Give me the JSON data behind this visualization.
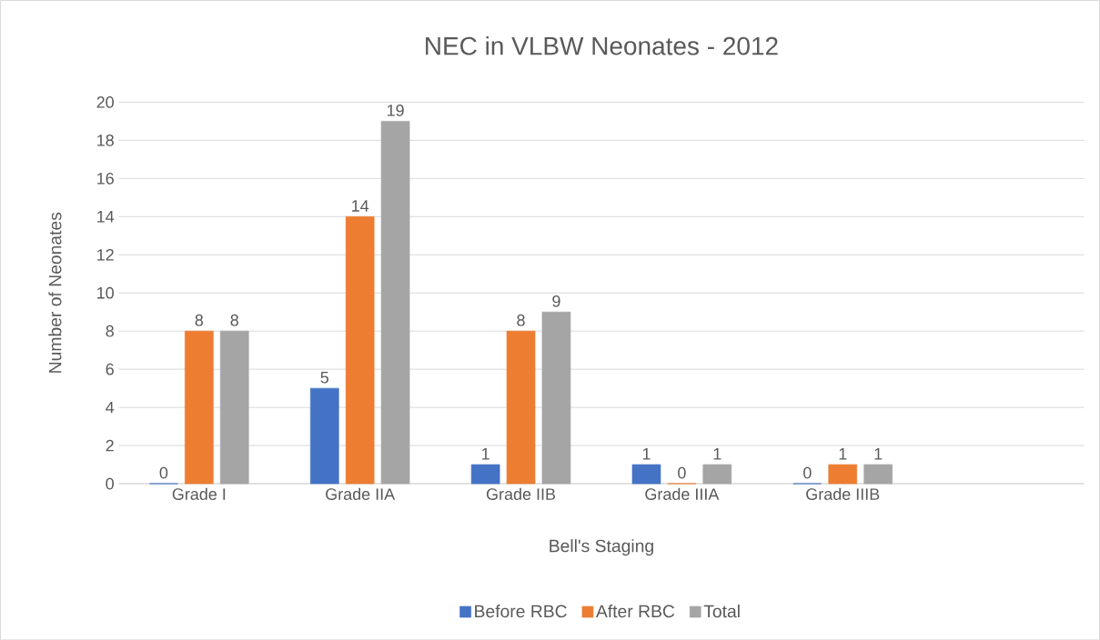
{
  "chart_data": {
    "type": "bar",
    "title": "NEC in VLBW Neonates - 2012",
    "xlabel": "Bell's Staging",
    "ylabel": "Number of Neonates",
    "categories": [
      "Grade I",
      "Grade IIA",
      "Grade IIB",
      "Grade IIIA",
      "Grade IIIB",
      null
    ],
    "series": [
      {
        "name": "Before RBC",
        "color": "#4472c4",
        "values": [
          0,
          5,
          1,
          1,
          0,
          null
        ]
      },
      {
        "name": "After RBC",
        "color": "#ed7d31",
        "values": [
          8,
          14,
          8,
          0,
          1,
          null
        ]
      },
      {
        "name": "Total",
        "color": "#a5a5a5",
        "values": [
          8,
          19,
          9,
          1,
          1,
          null
        ]
      }
    ],
    "ylim": [
      0,
      20
    ],
    "yticks": [
      0,
      2,
      4,
      6,
      8,
      10,
      12,
      14,
      16,
      18,
      20
    ],
    "grid": "y",
    "legend": "bottom",
    "data_labels": true
  }
}
